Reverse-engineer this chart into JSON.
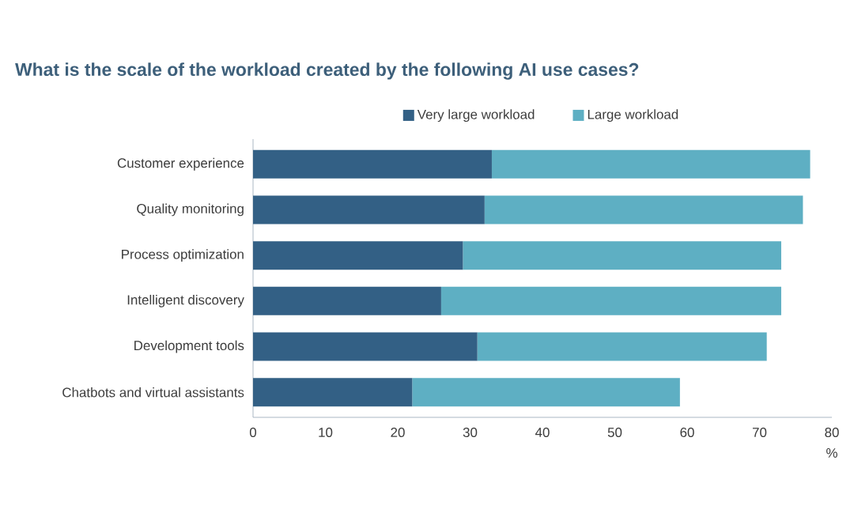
{
  "chart_data": {
    "type": "bar",
    "orientation": "horizontal",
    "stacked": true,
    "title": "What is the scale of the workload created by the following AI use cases?",
    "categories": [
      "Customer experience",
      "Quality monitoring",
      "Process optimization",
      "Intelligent discovery",
      "Development tools",
      "Chatbots and virtual assistants"
    ],
    "series": [
      {
        "name": "Very large workload",
        "color": "#336085",
        "values": [
          33,
          32,
          29,
          26,
          31,
          22
        ]
      },
      {
        "name": "Large workload",
        "color": "#5eafc3",
        "values": [
          44,
          44,
          44,
          47,
          40,
          37
        ]
      }
    ],
    "xlim": [
      0,
      80
    ],
    "xticks": [
      0,
      10,
      20,
      30,
      40,
      50,
      60,
      70,
      80
    ],
    "xlabel": "%",
    "legend": "top",
    "grid": false
  }
}
